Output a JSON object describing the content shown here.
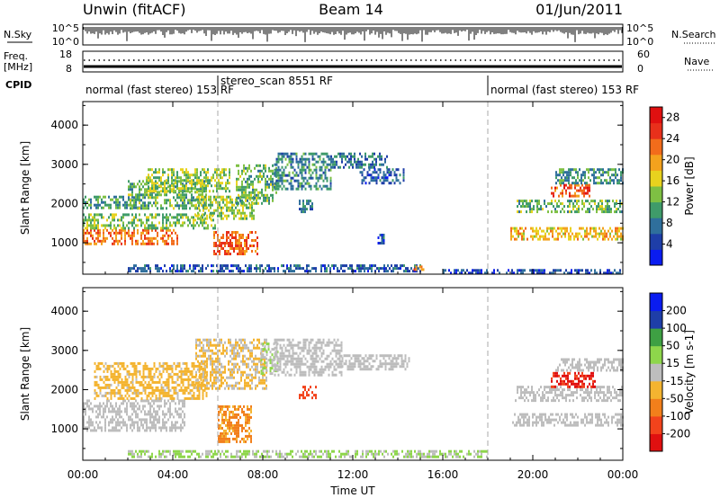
{
  "header": {
    "station": "Unwin (fitACF)",
    "beam": "Beam 14",
    "date": "01/Jun/2011"
  },
  "top_panels": {
    "nsky_label": "N.Sky",
    "nsky_ticks": [
      "10^5",
      "10^0"
    ],
    "nsearch_label": "N.Search",
    "nsearch_ticks": [
      "10^5",
      "10^0"
    ],
    "freq_label": "Freq.",
    "freq_unit": "[MHz]",
    "freq_ticks": [
      "18",
      "8"
    ],
    "nave_label": "Nave",
    "nave_ticks": [
      "60",
      "0"
    ],
    "cpid_label": "CPID",
    "cpid_segments": [
      {
        "label": "normal (fast stereo) 153 RF",
        "start_hour": 0,
        "end_hour": 6
      },
      {
        "label": "stereo_scan 8551 RF",
        "start_hour": 6,
        "end_hour": 18
      },
      {
        "label": "normal (fast stereo) 153 RF",
        "start_hour": 18,
        "end_hour": 24
      }
    ]
  },
  "x_axis": {
    "label": "Time UT",
    "ticks": [
      "00:00",
      "04:00",
      "08:00",
      "12:00",
      "16:00",
      "20:00",
      "00:00"
    ],
    "range_hours": [
      0,
      24
    ]
  },
  "chart_data": [
    {
      "type": "heatmap",
      "quantity": "Power",
      "ylabel": "Slant Range [km]",
      "yticks": [
        "1000",
        "2000",
        "3000",
        "4000"
      ],
      "ylim": [
        200,
        4600
      ],
      "colorbar": {
        "label": "Power [dB]",
        "ticks": [
          "4",
          "8",
          "12",
          "16",
          "20",
          "24",
          "28"
        ],
        "range": [
          0,
          30
        ],
        "colors": [
          "#0a1cf0",
          "#1e3ea8",
          "#2f6f9c",
          "#3f9b6a",
          "#7ec043",
          "#e8d21e",
          "#f4a21d",
          "#f26c1b",
          "#e8301b",
          "#e01010"
        ]
      },
      "regions": [
        {
          "t0": 0.0,
          "t1": 4.2,
          "r0": 950,
          "r1": 1350,
          "power": 22
        },
        {
          "t0": 0.0,
          "t1": 5.9,
          "r0": 1350,
          "r1": 1750,
          "power": 13
        },
        {
          "t0": 0.0,
          "t1": 2.5,
          "r0": 1900,
          "r1": 2200,
          "power": 10
        },
        {
          "t0": 2.0,
          "t1": 5.5,
          "r0": 1900,
          "r1": 2600,
          "power": 12
        },
        {
          "t0": 2.8,
          "t1": 6.5,
          "r0": 2300,
          "r1": 2900,
          "power": 14
        },
        {
          "t0": 5.0,
          "t1": 7.6,
          "r0": 1600,
          "r1": 2200,
          "power": 14
        },
        {
          "t0": 5.8,
          "t1": 7.8,
          "r0": 700,
          "r1": 1300,
          "power": 23
        },
        {
          "t0": 6.8,
          "t1": 8.6,
          "r0": 2000,
          "r1": 3000,
          "power": 12
        },
        {
          "t0": 8.5,
          "t1": 11.0,
          "r0": 2400,
          "r1": 3300,
          "power": 9
        },
        {
          "t0": 11.0,
          "t1": 13.5,
          "r0": 2900,
          "r1": 3300,
          "power": 8
        },
        {
          "t0": 12.3,
          "t1": 14.3,
          "r0": 2500,
          "r1": 2900,
          "power": 6
        },
        {
          "t0": 9.6,
          "t1": 10.2,
          "r0": 1800,
          "r1": 2100,
          "power": 8
        },
        {
          "t0": 13.1,
          "t1": 13.4,
          "r0": 1000,
          "r1": 1300,
          "power": 6
        },
        {
          "t0": 2.0,
          "t1": 15.0,
          "r0": 280,
          "r1": 450,
          "power": 6
        },
        {
          "t0": 14.7,
          "t1": 15.1,
          "r0": 330,
          "r1": 420,
          "power": 22
        },
        {
          "t0": 19.0,
          "t1": 24.0,
          "r0": 1100,
          "r1": 1400,
          "power": 18
        },
        {
          "t0": 19.2,
          "t1": 24.0,
          "r0": 1800,
          "r1": 2100,
          "power": 12
        },
        {
          "t0": 20.8,
          "t1": 22.5,
          "r0": 2200,
          "r1": 2500,
          "power": 24
        },
        {
          "t0": 21.0,
          "t1": 24.0,
          "r0": 2500,
          "r1": 2900,
          "power": 10
        },
        {
          "t0": 16.0,
          "t1": 24.0,
          "r0": 250,
          "r1": 330,
          "power": 5
        }
      ]
    },
    {
      "type": "heatmap",
      "quantity": "Velocity",
      "ylabel": "Slant Range [km]",
      "yticks": [
        "1000",
        "2000",
        "3000",
        "4000"
      ],
      "ylim": [
        200,
        4600
      ],
      "colorbar": {
        "label": "Velocity [m s-1]",
        "ticks": [
          "200",
          "100",
          "50",
          "15",
          "-15",
          "-50",
          "-100",
          "-200"
        ],
        "range": [
          -250,
          250
        ],
        "colors": [
          "#e01010",
          "#f2431c",
          "#f27f1b",
          "#f4b430",
          "#bdbdbd",
          "#8ed64b",
          "#3ea043",
          "#1e3ea8",
          "#0a1cf0"
        ]
      },
      "regions": [
        {
          "t0": 0.0,
          "t1": 4.5,
          "r0": 950,
          "r1": 1750,
          "velocity": 0
        },
        {
          "t0": 0.5,
          "t1": 5.5,
          "r0": 1800,
          "r1": 2700,
          "velocity": -40
        },
        {
          "t0": 5.0,
          "t1": 8.2,
          "r0": 2000,
          "r1": 3300,
          "velocity": -30
        },
        {
          "t0": 6.0,
          "t1": 7.5,
          "r0": 700,
          "r1": 1600,
          "velocity": -90
        },
        {
          "t0": 7.9,
          "t1": 8.7,
          "r0": 2400,
          "r1": 3200,
          "velocity": 25
        },
        {
          "t0": 8.5,
          "t1": 11.5,
          "r0": 2400,
          "r1": 3300,
          "velocity": 0
        },
        {
          "t0": 11.5,
          "t1": 14.5,
          "r0": 2500,
          "r1": 2900,
          "velocity": 0
        },
        {
          "t0": 9.6,
          "t1": 10.4,
          "r0": 1800,
          "r1": 2100,
          "velocity": -180
        },
        {
          "t0": 2.0,
          "t1": 18.0,
          "r0": 280,
          "r1": 460,
          "velocity": 30
        },
        {
          "t0": 19.0,
          "t1": 24.0,
          "r0": 1100,
          "r1": 1400,
          "velocity": 0
        },
        {
          "t0": 19.2,
          "t1": 24.0,
          "r0": 1750,
          "r1": 2100,
          "velocity": 0
        },
        {
          "t0": 20.8,
          "t1": 22.8,
          "r0": 2050,
          "r1": 2450,
          "velocity": -200
        },
        {
          "t0": 21.0,
          "t1": 24.0,
          "r0": 2500,
          "r1": 2800,
          "velocity": 0
        }
      ]
    }
  ]
}
